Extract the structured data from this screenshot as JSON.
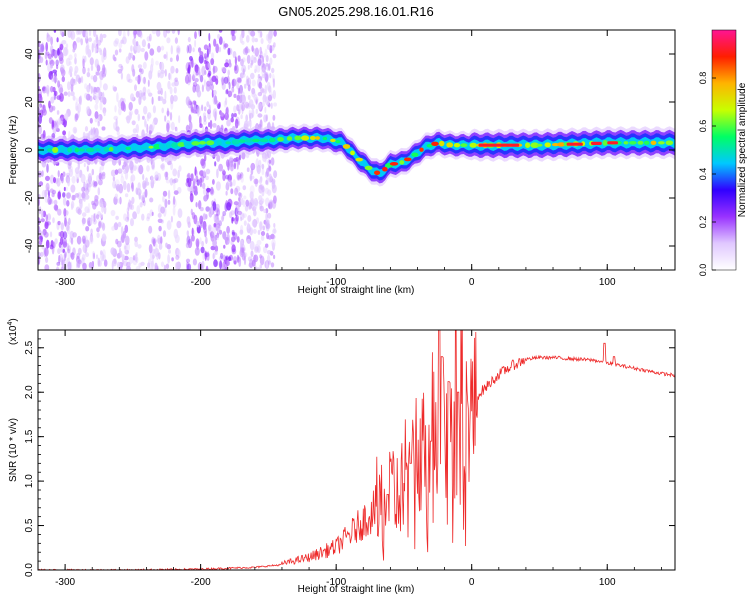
{
  "figure_title": "GN05.2025.298.16.01.R16",
  "chart_data": [
    {
      "type": "heatmap",
      "title": "GN05.2025.298.16.01.R16",
      "xlabel": "Height of straight line (km)",
      "ylabel": "Frequency (Hz)",
      "xlim": [
        -320,
        150
      ],
      "ylim": [
        -50,
        50
      ],
      "xticks": [
        -300,
        -200,
        -100,
        0,
        100
      ],
      "xtick_labels": [
        "-300",
        "-200",
        "-100",
        "0",
        "100"
      ],
      "yticks": [
        -40,
        -20,
        0,
        20,
        40
      ],
      "ytick_labels": [
        "-40",
        "-20",
        "0",
        "20",
        "40"
      ],
      "colorbar": {
        "label": "Normalized spectral amplitude",
        "range": [
          0,
          1
        ],
        "ticks": [
          0.0,
          0.2,
          0.4,
          0.6,
          0.8
        ],
        "tick_labels": [
          "0.0",
          "0.2",
          "0.4",
          "0.6",
          "0.8"
        ],
        "colormap": [
          "#ffffff",
          "#e0c8ff",
          "#9932ff",
          "#3000ff",
          "#00c8ff",
          "#00ff64",
          "#c8ff00",
          "#ffb400",
          "#ff1e00",
          "#ff1493"
        ]
      },
      "center_line": {
        "x": [
          -320,
          -280,
          -240,
          -200,
          -180,
          -165,
          -150,
          -130,
          -110,
          -95,
          -85,
          -75,
          -68,
          -60,
          -50,
          -42,
          -35,
          -25,
          -15,
          -5,
          10,
          50,
          100,
          150
        ],
        "freq": [
          0,
          0,
          1,
          3,
          3,
          4,
          4,
          5,
          5,
          3,
          -3,
          -8,
          -10,
          -6,
          -5,
          -2,
          1,
          3,
          2,
          2,
          2,
          2,
          3,
          3
        ]
      }
    },
    {
      "type": "line",
      "xlabel": "Height of straight line (km)",
      "ylabel": "SNR (10 * v/v)",
      "scale_label": "(x10",
      "scale_exponent": "4",
      "scale_close": ")",
      "xlim": [
        -320,
        150
      ],
      "ylim": [
        0,
        2.7
      ],
      "xticks": [
        -300,
        -200,
        -100,
        0,
        100
      ],
      "xtick_labels": [
        "-300",
        "-200",
        "-100",
        "0",
        "100"
      ],
      "yticks": [
        0.0,
        0.5,
        1.0,
        1.5,
        2.0,
        2.5
      ],
      "ytick_labels": [
        "0.0",
        "0.5",
        "1.0",
        "1.5",
        "2.0",
        "2.5"
      ],
      "line_color": "#ee2a2a",
      "series": [
        {
          "name": "SNR",
          "x": [
            -320,
            -250,
            -200,
            -160,
            -140,
            -120,
            -100,
            -85,
            -70,
            -60,
            -50,
            -40,
            -30,
            -22,
            -15,
            -8,
            0,
            10,
            20,
            30,
            40,
            50,
            60,
            70,
            80,
            90,
            100,
            110,
            120,
            130,
            140,
            150
          ],
          "values": [
            0.0,
            0.0,
            0.01,
            0.03,
            0.06,
            0.12,
            0.22,
            0.4,
            0.6,
            0.8,
            1.05,
            1.35,
            1.6,
            1.75,
            1.7,
            1.75,
            1.9,
            2.05,
            2.2,
            2.3,
            2.37,
            2.39,
            2.39,
            2.38,
            2.37,
            2.36,
            2.33,
            2.3,
            2.27,
            2.24,
            2.21,
            2.19
          ]
        }
      ],
      "spikes": [
        {
          "x": -24,
          "value": 2.75
        },
        {
          "x": -22,
          "value": 2.4
        },
        {
          "x": -17,
          "value": 2.12
        },
        {
          "x": -30,
          "value": 1.45
        },
        {
          "x": -10,
          "value": 2.0
        },
        {
          "x": -62,
          "value": 0.85
        },
        {
          "x": -45,
          "value": 1.2
        },
        {
          "x": 98,
          "value": 2.55
        },
        {
          "x": 105,
          "value": 2.4
        }
      ]
    }
  ]
}
